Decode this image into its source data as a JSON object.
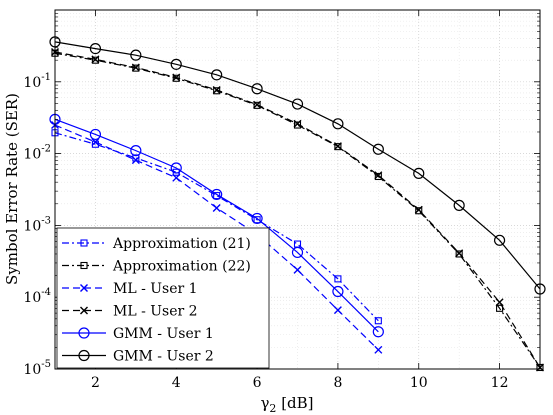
{
  "chart_data": {
    "type": "line",
    "xlabel_symbol": "γ",
    "xlabel_sub": "2",
    "xlabel_unit": " [dB]",
    "ylabel": "Symbol Error Rate (SER)",
    "xlim": [
      1,
      13
    ],
    "ylim": [
      1e-05,
      1
    ],
    "yscale": "log",
    "grid": true,
    "legend_position": "bottom-left",
    "xticks": [
      "2",
      "4",
      "6",
      "8",
      "10",
      "12"
    ],
    "yticks": [
      {
        "base": "10",
        "exp": "-5",
        "value": 1e-05
      },
      {
        "base": "10",
        "exp": "-4",
        "value": 0.0001
      },
      {
        "base": "10",
        "exp": "-3",
        "value": 0.001
      },
      {
        "base": "10",
        "exp": "-2",
        "value": 0.01
      },
      {
        "base": "10",
        "exp": "-1",
        "value": 0.1
      }
    ],
    "series": [
      {
        "name": "Approximation (21)",
        "color": "#0000ff",
        "dash": "dashdot",
        "marker": "square",
        "x": [
          1,
          2,
          3,
          4,
          5,
          6,
          7,
          8,
          9
        ],
        "y": [
          0.0195,
          0.0135,
          0.0087,
          0.0055,
          0.0026,
          0.0012,
          0.00055,
          0.00018,
          4.7e-05
        ]
      },
      {
        "name": "Approximation (22)",
        "color": "#000000",
        "dash": "dashdot",
        "marker": "square",
        "x": [
          1,
          2,
          3,
          4,
          5,
          6,
          7,
          8,
          9,
          10,
          11,
          12,
          13
        ],
        "y": [
          0.25,
          0.2,
          0.155,
          0.112,
          0.075,
          0.047,
          0.025,
          0.0125,
          0.0048,
          0.0016,
          0.0004,
          7e-05,
          1.05e-05
        ]
      },
      {
        "name": "ML - User 1",
        "color": "#0000ff",
        "dash": "dashed",
        "marker": "x",
        "x": [
          1,
          2,
          3,
          4,
          5,
          6,
          7,
          8,
          9
        ],
        "y": [
          0.025,
          0.0145,
          0.0081,
          0.0046,
          0.00175,
          0.00075,
          0.00024,
          6.6e-05,
          1.85e-05
        ]
      },
      {
        "name": "ML - User 2",
        "color": "#000000",
        "dash": "dashed",
        "marker": "x",
        "x": [
          1,
          2,
          3,
          4,
          5,
          6,
          7,
          8,
          9,
          10,
          11,
          12,
          13
        ],
        "y": [
          0.26,
          0.205,
          0.158,
          0.115,
          0.077,
          0.048,
          0.026,
          0.0127,
          0.005,
          0.00165,
          0.00041,
          8.5e-05,
          1.05e-05
        ]
      },
      {
        "name": "GMM - User 1",
        "color": "#0000ff",
        "dash": "solid",
        "marker": "circle",
        "x": [
          1,
          2,
          3,
          4,
          5,
          6,
          7,
          8,
          9
        ],
        "y": [
          0.03,
          0.0185,
          0.011,
          0.0063,
          0.0027,
          0.00125,
          0.00042,
          0.00012,
          3.3e-05
        ]
      },
      {
        "name": "GMM - User 2",
        "color": "#000000",
        "dash": "solid",
        "marker": "circle",
        "x": [
          1,
          2,
          3,
          4,
          5,
          6,
          7,
          8,
          9,
          10,
          11,
          12,
          13
        ],
        "y": [
          0.36,
          0.29,
          0.235,
          0.175,
          0.125,
          0.08,
          0.049,
          0.026,
          0.0115,
          0.0053,
          0.0019,
          0.00062,
          0.00013
        ]
      }
    ]
  }
}
